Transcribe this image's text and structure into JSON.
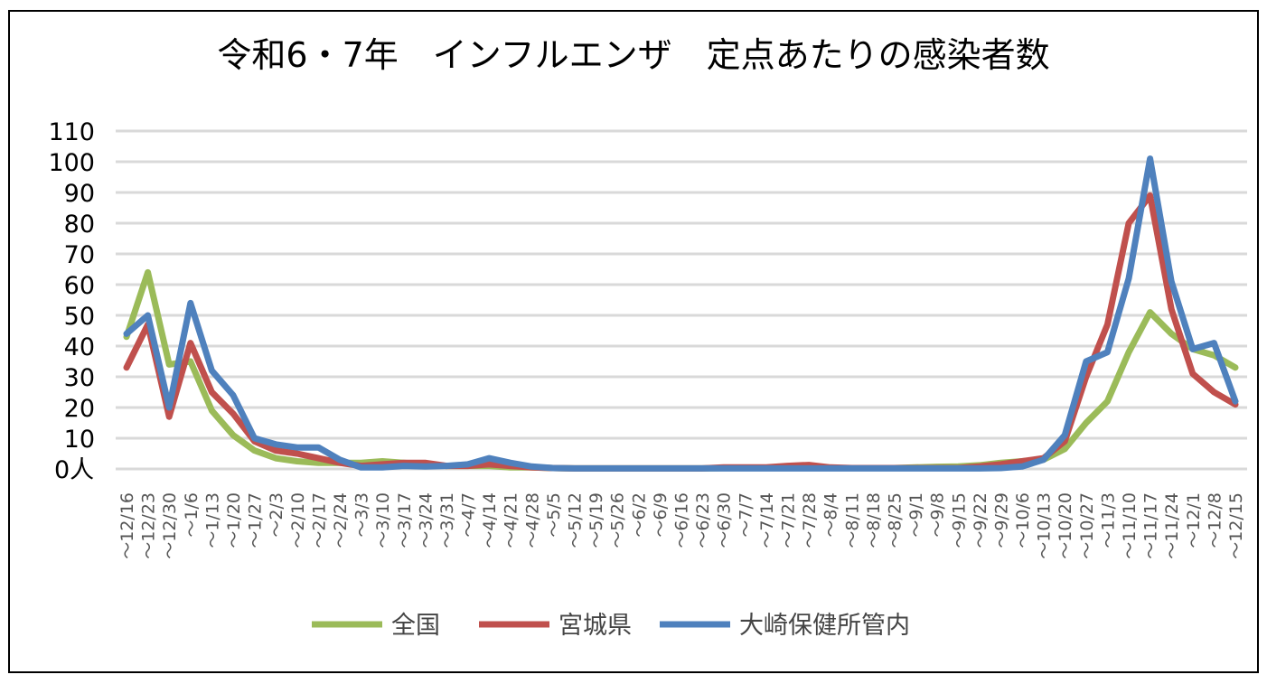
{
  "chart_data": {
    "type": "line",
    "title": "令和6・7年　インフルエンザ　定点あたりの感染者数",
    "categories": [
      "12/16",
      "12/23",
      "12/30",
      "1/6",
      "1/13",
      "1/20",
      "1/27",
      "2/3",
      "2/10",
      "2/17",
      "2/24",
      "3/3",
      "3/10",
      "3/17",
      "3/24",
      "3/31",
      "4/7",
      "4/14",
      "4/21",
      "4/28",
      "5/5",
      "5/12",
      "5/19",
      "5/26",
      "6/2",
      "6/9",
      "6/16",
      "6/23",
      "6/30",
      "7/7",
      "7/14",
      "7/21",
      "7/28",
      "8/4",
      "8/11",
      "8/18",
      "8/25",
      "9/1",
      "9/8",
      "9/15",
      "9/22",
      "9/29",
      "10/6",
      "10/13",
      "10/20",
      "10/27",
      "11/3",
      "11/10",
      "11/17",
      "11/24",
      "12/1",
      "12/8",
      "12/15"
    ],
    "category_suffix": "～",
    "y_ticks": [
      "0人",
      "10",
      "20",
      "30",
      "40",
      "50",
      "60",
      "70",
      "80",
      "90",
      "100",
      "110"
    ],
    "ylim": [
      0,
      110
    ],
    "grid": true,
    "legend": "bottom",
    "series": [
      {
        "name": "全国",
        "color": "#9BBB59",
        "values": [
          43,
          64,
          34,
          35,
          19,
          11,
          6,
          3.5,
          2.5,
          2,
          2,
          2,
          2.5,
          2,
          1.5,
          1,
          1,
          1,
          0.5,
          0.5,
          0.3,
          0.2,
          0.2,
          0.2,
          0.2,
          0.2,
          0.2,
          0.2,
          0.3,
          0.3,
          0.3,
          0.3,
          0.3,
          0.3,
          0.3,
          0.3,
          0.3,
          0.5,
          0.7,
          0.8,
          1.2,
          2,
          2.5,
          3,
          6.5,
          15,
          22,
          38,
          51,
          44,
          39,
          37,
          33
        ]
      },
      {
        "name": "宮城県",
        "color": "#C0504D",
        "values": [
          33,
          47,
          17,
          41,
          25,
          18,
          9,
          6,
          5,
          3.5,
          2,
          1,
          1.5,
          2,
          2,
          1,
          1,
          1.5,
          1,
          0.5,
          0.3,
          0.2,
          0.2,
          0.2,
          0.2,
          0.2,
          0.2,
          0.2,
          0.5,
          0.5,
          0.5,
          1,
          1.3,
          0.5,
          0.3,
          0.3,
          0.3,
          0.3,
          0.3,
          0.3,
          0.8,
          1.5,
          2.5,
          3.5,
          9,
          30,
          47,
          80,
          89,
          52,
          31,
          25,
          21
        ]
      },
      {
        "name": "大崎保健所管内",
        "color": "#4F81BD",
        "values": [
          44,
          50,
          20,
          54,
          32,
          24,
          10,
          8,
          7,
          7,
          3,
          0.5,
          0.5,
          1,
          0.8,
          1,
          1.5,
          3.5,
          2,
          0.8,
          0.3,
          0.2,
          0.2,
          0.2,
          0.2,
          0.2,
          0.2,
          0.2,
          0.2,
          0.2,
          0.2,
          0.2,
          0.2,
          0.2,
          0.2,
          0.2,
          0.2,
          0.2,
          0.2,
          0.2,
          0.2,
          0.3,
          0.8,
          3,
          11,
          35,
          38,
          62,
          101,
          61,
          39,
          41,
          22
        ]
      }
    ]
  }
}
